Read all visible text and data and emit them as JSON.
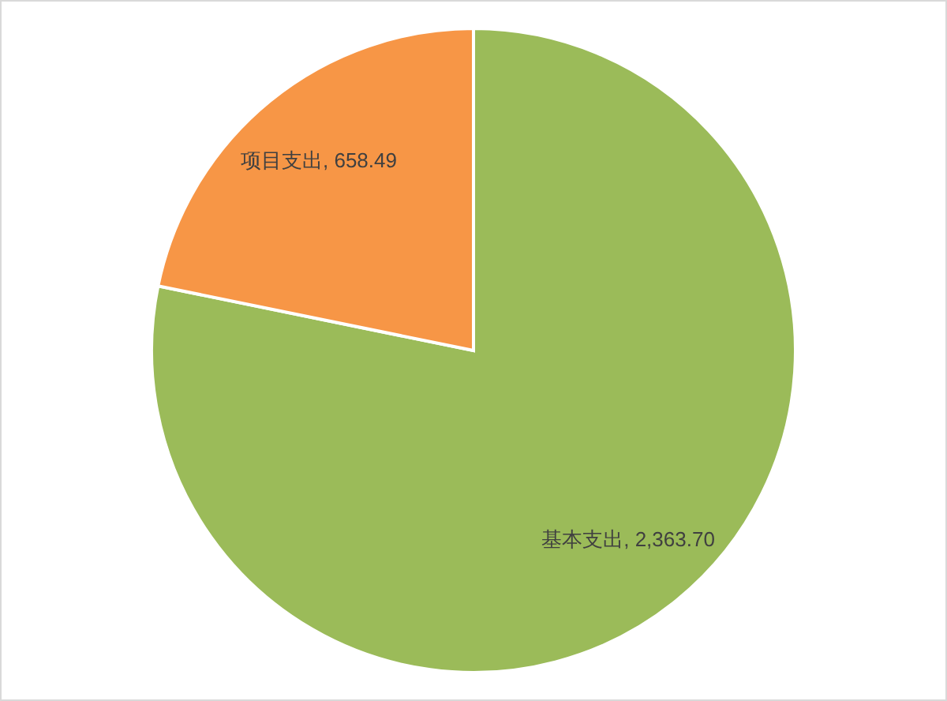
{
  "chart_data": {
    "type": "pie",
    "categories": [
      "基本支出",
      "项目支出"
    ],
    "values": [
      2363.7,
      658.49
    ],
    "value_labels": [
      "2,363.70",
      "658.49"
    ],
    "colors": [
      "#9bbb59",
      "#f79646"
    ]
  }
}
